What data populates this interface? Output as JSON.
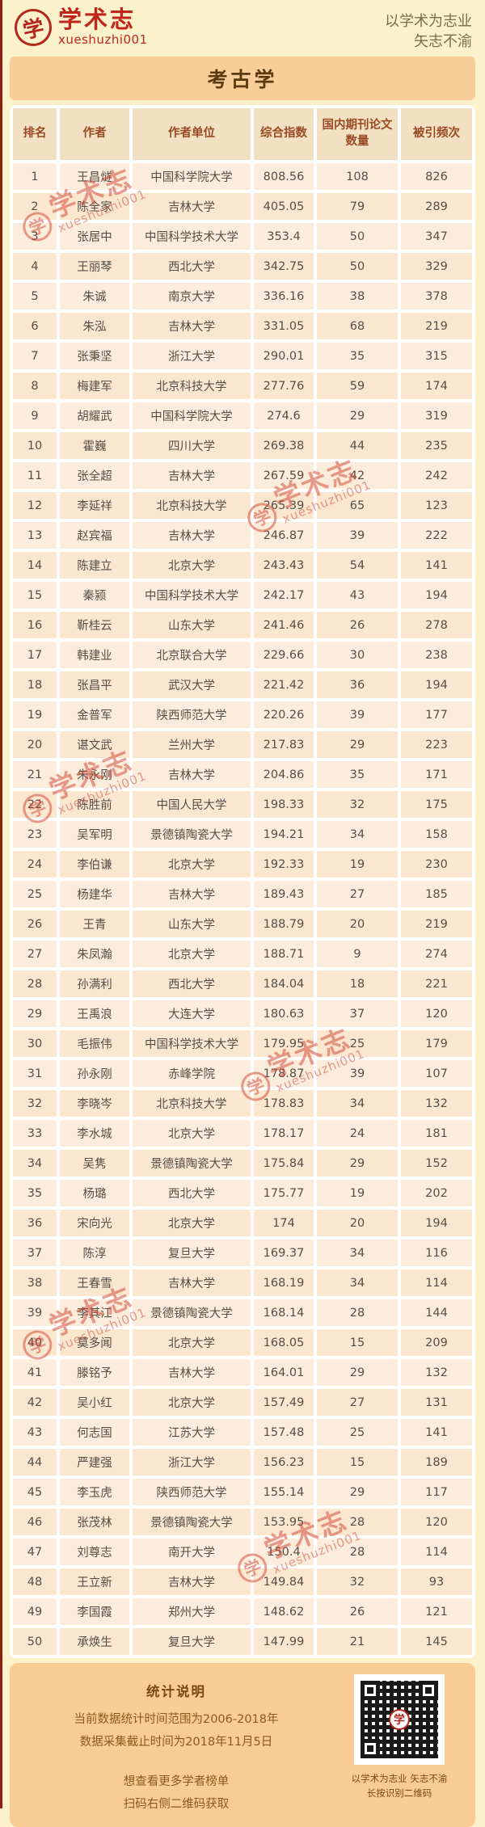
{
  "header": {
    "logo_seal_char": "学",
    "logo_name": "学术志",
    "logo_handle": "xueshuzhi001",
    "tagline_line1": "以学术为志业",
    "tagline_line2": "矢志不渝"
  },
  "title": "考古学",
  "table": {
    "columns": [
      "排名",
      "作者",
      "作者单位",
      "综合指数",
      "国内期刊论文数量",
      "被引频次"
    ],
    "rows": [
      [
        1,
        "王昌燧",
        "中国科学院大学",
        "808.56",
        108,
        826
      ],
      [
        2,
        "陈全家",
        "吉林大学",
        "405.05",
        79,
        289
      ],
      [
        3,
        "张居中",
        "中国科学技术大学",
        "353.4",
        50,
        347
      ],
      [
        4,
        "王丽琴",
        "西北大学",
        "342.75",
        50,
        329
      ],
      [
        5,
        "朱诚",
        "南京大学",
        "336.16",
        38,
        378
      ],
      [
        6,
        "朱泓",
        "吉林大学",
        "331.05",
        68,
        219
      ],
      [
        7,
        "张秉坚",
        "浙江大学",
        "290.01",
        35,
        315
      ],
      [
        8,
        "梅建军",
        "北京科技大学",
        "277.76",
        59,
        174
      ],
      [
        9,
        "胡耀武",
        "中国科学院大学",
        "274.6",
        29,
        319
      ],
      [
        10,
        "霍巍",
        "四川大学",
        "269.38",
        44,
        235
      ],
      [
        11,
        "张全超",
        "吉林大学",
        "267.59",
        42,
        242
      ],
      [
        12,
        "李延祥",
        "北京科技大学",
        "265.39",
        65,
        123
      ],
      [
        13,
        "赵宾福",
        "吉林大学",
        "246.87",
        39,
        222
      ],
      [
        14,
        "陈建立",
        "北京大学",
        "243.43",
        54,
        141
      ],
      [
        15,
        "秦颍",
        "中国科学技术大学",
        "242.17",
        43,
        194
      ],
      [
        16,
        "靳桂云",
        "山东大学",
        "241.46",
        26,
        278
      ],
      [
        17,
        "韩建业",
        "北京联合大学",
        "229.66",
        30,
        238
      ],
      [
        18,
        "张昌平",
        "武汉大学",
        "221.42",
        36,
        194
      ],
      [
        19,
        "金普军",
        "陕西师范大学",
        "220.26",
        39,
        177
      ],
      [
        20,
        "谌文武",
        "兰州大学",
        "217.83",
        29,
        223
      ],
      [
        21,
        "朱永刚",
        "吉林大学",
        "204.86",
        35,
        171
      ],
      [
        22,
        "陈胜前",
        "中国人民大学",
        "198.33",
        32,
        175
      ],
      [
        23,
        "吴军明",
        "景德镇陶瓷大学",
        "194.21",
        34,
        158
      ],
      [
        24,
        "李伯谦",
        "北京大学",
        "192.33",
        19,
        230
      ],
      [
        25,
        "杨建华",
        "吉林大学",
        "189.43",
        27,
        185
      ],
      [
        26,
        "王青",
        "山东大学",
        "188.79",
        20,
        219
      ],
      [
        27,
        "朱凤瀚",
        "北京大学",
        "188.71",
        9,
        274
      ],
      [
        28,
        "孙满利",
        "西北大学",
        "184.04",
        18,
        221
      ],
      [
        29,
        "王禹浪",
        "大连大学",
        "180.63",
        37,
        120
      ],
      [
        30,
        "毛振伟",
        "中国科学技术大学",
        "179.95",
        25,
        179
      ],
      [
        31,
        "孙永刚",
        "赤峰学院",
        "178.87",
        39,
        107
      ],
      [
        32,
        "李晓岑",
        "北京科技大学",
        "178.83",
        34,
        132
      ],
      [
        33,
        "李水城",
        "北京大学",
        "178.17",
        24,
        181
      ],
      [
        34,
        "吴隽",
        "景德镇陶瓷大学",
        "175.84",
        29,
        152
      ],
      [
        35,
        "杨璐",
        "西北大学",
        "175.77",
        19,
        202
      ],
      [
        36,
        "宋向光",
        "北京大学",
        "174",
        20,
        194
      ],
      [
        37,
        "陈淳",
        "复旦大学",
        "169.37",
        34,
        116
      ],
      [
        38,
        "王春雪",
        "吉林大学",
        "168.19",
        34,
        114
      ],
      [
        39,
        "李其江",
        "景德镇陶瓷大学",
        "168.14",
        28,
        144
      ],
      [
        40,
        "莫多闻",
        "北京大学",
        "168.05",
        15,
        209
      ],
      [
        41,
        "滕铭予",
        "吉林大学",
        "164.01",
        29,
        132
      ],
      [
        42,
        "吴小红",
        "北京大学",
        "157.49",
        27,
        131
      ],
      [
        43,
        "何志国",
        "江苏大学",
        "157.48",
        25,
        141
      ],
      [
        44,
        "严建强",
        "浙江大学",
        "156.23",
        15,
        189
      ],
      [
        45,
        "李玉虎",
        "陕西师范大学",
        "155.14",
        29,
        117
      ],
      [
        46,
        "张茂林",
        "景德镇陶瓷大学",
        "153.95",
        28,
        120
      ],
      [
        47,
        "刘尊志",
        "南开大学",
        "150.4",
        28,
        114
      ],
      [
        48,
        "王立新",
        "吉林大学",
        "149.84",
        32,
        93
      ],
      [
        49,
        "李国霞",
        "郑州大学",
        "148.62",
        26,
        121
      ],
      [
        50,
        "承焕生",
        "复旦大学",
        "147.99",
        21,
        145
      ]
    ]
  },
  "watermark": {
    "seal_char": "学",
    "text": "学术志",
    "handle": "xueshuzhi001"
  },
  "footer": {
    "title": "统计说明",
    "line1": "当前数据统计时间范围为2006-2018年",
    "line2": "数据采集截止时间为2018年11月5日",
    "line3": "想查看更多学者榜单",
    "line4": "扫码右侧二维码获取",
    "qr_logo_char": "学",
    "qr_caption1": "以学术为志业 矢志不渝",
    "qr_caption2": "长按识别二维码"
  },
  "colors": {
    "page_bg": "#fbf2cc",
    "brand_red": "#c0251a",
    "title_bar_bg": "#f9cd98",
    "header_cell_bg": "#f1e1c2",
    "header_text": "#994a24",
    "row_bg": "#fcecdc",
    "footer_bg": "#f8cc94",
    "footer_text": "#8a5a1d",
    "watermark_red": "#cf4330"
  }
}
